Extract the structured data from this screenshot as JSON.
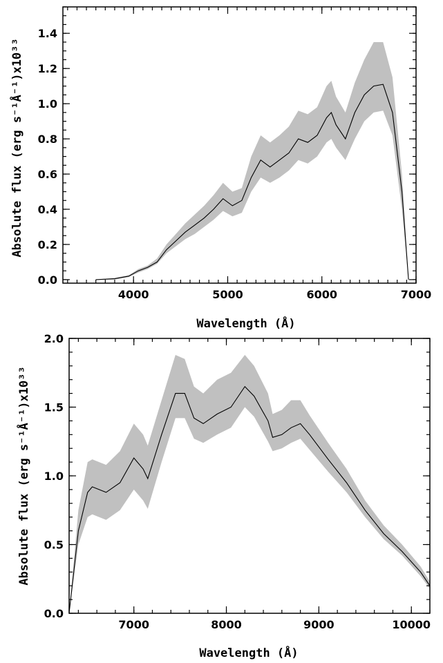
{
  "chart_data": [
    {
      "type": "line",
      "xlabel": "Wavelength (Å)",
      "ylabel": "Absolute flux (erg s⁻¹Å⁻¹)x10³³",
      "xlim": [
        3250,
        7000
      ],
      "ylim": [
        -0.02,
        1.55
      ],
      "x_ticks": [
        "4000",
        "5000",
        "6000",
        "7000"
      ],
      "y_ticks": [
        "0.0",
        "0.2",
        "0.4",
        "0.6",
        "0.8",
        "1.0",
        "1.2",
        "1.4"
      ],
      "grid": false,
      "series": [
        {
          "x": [
            3600,
            3800,
            3950,
            4050,
            4150,
            4250,
            4350,
            4450,
            4550,
            4650,
            4750,
            4850,
            4950,
            5050,
            5150,
            5250,
            5350,
            5450,
            5550,
            5650,
            5750,
            5850,
            5950,
            6050,
            6100,
            6150,
            6250,
            6350,
            6450,
            6550,
            6650,
            6750,
            6850,
            6920
          ],
          "y": [
            0.0,
            0.005,
            0.02,
            0.05,
            0.07,
            0.1,
            0.17,
            0.22,
            0.27,
            0.31,
            0.35,
            0.4,
            0.46,
            0.42,
            0.45,
            0.58,
            0.68,
            0.64,
            0.68,
            0.72,
            0.8,
            0.78,
            0.82,
            0.92,
            0.95,
            0.88,
            0.8,
            0.95,
            1.05,
            1.1,
            1.11,
            0.95,
            0.5,
            0.0
          ],
          "lower": [
            0.0,
            0.0,
            0.015,
            0.04,
            0.06,
            0.09,
            0.15,
            0.19,
            0.23,
            0.26,
            0.3,
            0.34,
            0.39,
            0.36,
            0.38,
            0.5,
            0.58,
            0.55,
            0.58,
            0.62,
            0.68,
            0.66,
            0.7,
            0.78,
            0.8,
            0.75,
            0.68,
            0.8,
            0.9,
            0.95,
            0.96,
            0.82,
            0.4,
            0.0
          ],
          "upper": [
            0.0,
            0.01,
            0.025,
            0.06,
            0.08,
            0.12,
            0.2,
            0.26,
            0.32,
            0.37,
            0.42,
            0.48,
            0.55,
            0.5,
            0.52,
            0.7,
            0.82,
            0.78,
            0.82,
            0.87,
            0.96,
            0.94,
            0.98,
            1.1,
            1.13,
            1.04,
            0.95,
            1.12,
            1.25,
            1.35,
            1.35,
            1.15,
            0.6,
            0.0
          ]
        }
      ]
    },
    {
      "type": "line",
      "xlabel": "Wavelength (Å)",
      "ylabel": "Absolute flux (erg s⁻¹Å⁻¹)x10³³",
      "xlim": [
        6300,
        10200
      ],
      "ylim": [
        0.0,
        2.0
      ],
      "x_ticks": [
        "7000",
        "8000",
        "9000",
        "10000"
      ],
      "y_ticks": [
        "0.0",
        "0.5",
        "1.0",
        "1.5",
        "2.0"
      ],
      "grid": false,
      "series": [
        {
          "x": [
            6300,
            6400,
            6500,
            6550,
            6700,
            6850,
            7000,
            7100,
            7150,
            7300,
            7450,
            7550,
            7650,
            7750,
            7900,
            8050,
            8200,
            8300,
            8450,
            8500,
            8600,
            8700,
            8800,
            8900,
            9100,
            9300,
            9500,
            9700,
            9900,
            10100,
            10200
          ],
          "y": [
            0.0,
            0.6,
            0.88,
            0.92,
            0.88,
            0.95,
            1.13,
            1.05,
            0.98,
            1.3,
            1.6,
            1.6,
            1.42,
            1.38,
            1.45,
            1.5,
            1.65,
            1.58,
            1.4,
            1.28,
            1.3,
            1.35,
            1.38,
            1.3,
            1.12,
            0.95,
            0.75,
            0.58,
            0.45,
            0.3,
            0.2
          ],
          "lower": [
            0.0,
            0.5,
            0.7,
            0.72,
            0.68,
            0.75,
            0.9,
            0.82,
            0.76,
            1.1,
            1.42,
            1.42,
            1.27,
            1.24,
            1.3,
            1.35,
            1.5,
            1.43,
            1.25,
            1.18,
            1.2,
            1.24,
            1.27,
            1.19,
            1.03,
            0.88,
            0.7,
            0.54,
            0.42,
            0.27,
            0.18
          ],
          "upper": [
            0.0,
            0.75,
            1.1,
            1.12,
            1.08,
            1.18,
            1.38,
            1.3,
            1.22,
            1.55,
            1.88,
            1.85,
            1.65,
            1.6,
            1.7,
            1.75,
            1.88,
            1.8,
            1.6,
            1.45,
            1.48,
            1.55,
            1.55,
            1.44,
            1.24,
            1.05,
            0.82,
            0.64,
            0.5,
            0.34,
            0.23
          ]
        }
      ]
    }
  ]
}
